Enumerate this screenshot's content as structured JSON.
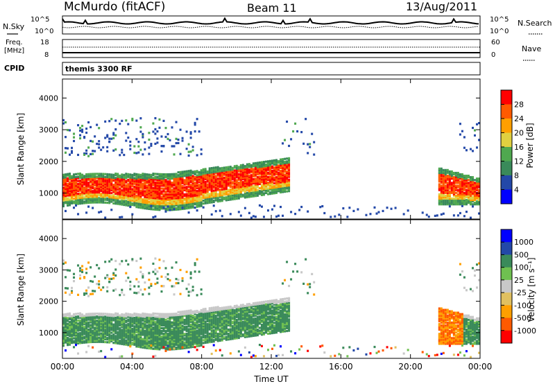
{
  "header": {
    "station": "McMurdo (fitACF)",
    "beam": "Beam 11",
    "date": "13/Aug/2011"
  },
  "noise_panel": {
    "left_label": "N.Sky",
    "right_label": "N.Search",
    "left_ticks": [
      "10^5",
      "10^0"
    ],
    "right_ticks": [
      "10^5",
      "10^0"
    ]
  },
  "freq_panel": {
    "left_label_1": "Freq.",
    "left_label_2": "[MHz]",
    "right_label": "Nave",
    "left_ticks": [
      "18",
      "8"
    ],
    "right_ticks": [
      "60",
      "0"
    ]
  },
  "cpid": {
    "label": "CPID",
    "value": "themis 3300 RF"
  },
  "colors": {
    "power_scale": [
      "#0000ff",
      "#2348a8",
      "#3a8a5a",
      "#4fa84f",
      "#e0d040",
      "#ff9f00",
      "#ff5a00",
      "#ff0000"
    ],
    "velocity_scale": [
      "#ff0000",
      "#ff5a00",
      "#ff9f00",
      "#e0c060",
      "#c8c8c8",
      "#6fc050",
      "#3a8a5a",
      "#2348a8",
      "#0000ff"
    ]
  },
  "chart_data": [
    {
      "type": "heatmap",
      "title": "Power",
      "xlabel": "",
      "ylabel": "Slant Range [km]",
      "x_ticks": [
        "00:00",
        "04:00",
        "08:00",
        "12:00",
        "16:00",
        "20:00",
        "00:00"
      ],
      "y_ticks": [
        "1000",
        "2000",
        "3000",
        "4000"
      ],
      "xlim": [
        0,
        24
      ],
      "ylim": [
        180,
        4600
      ],
      "colorbar": {
        "label": "Power [dB]",
        "ticks": [
          "4",
          "8",
          "12",
          "16",
          "20",
          "24",
          "28"
        ]
      },
      "echo_regions_summary": [
        {
          "time_h": [
            0,
            13
          ],
          "range_km": [
            600,
            2200
          ],
          "power_db": [
            20,
            32
          ]
        },
        {
          "time_h": [
            0,
            8
          ],
          "range_km": [
            2200,
            3300
          ],
          "power_db": [
            4,
            14
          ]
        },
        {
          "time_h": [
            12.5,
            14.5
          ],
          "range_km": [
            1500,
            2200
          ],
          "power_db": [
            8,
            16
          ]
        },
        {
          "time_h": [
            21.5,
            24
          ],
          "range_km": [
            700,
            1900
          ],
          "power_db": [
            20,
            32
          ]
        }
      ]
    },
    {
      "type": "heatmap",
      "title": "Velocity",
      "xlabel": "Time UT",
      "ylabel": "Slant Range [km]",
      "x_ticks": [
        "00:00",
        "04:00",
        "08:00",
        "12:00",
        "16:00",
        "20:00",
        "00:00"
      ],
      "y_ticks": [
        "1000",
        "2000",
        "3000",
        "4000"
      ],
      "xlim": [
        0,
        24
      ],
      "ylim": [
        180,
        4600
      ],
      "colorbar": {
        "label": "Velocity [m s⁻¹]",
        "ticks": [
          "1000",
          "500",
          "100",
          "25",
          "-25",
          "-100",
          "-500",
          "-1000"
        ]
      },
      "echo_regions_summary": [
        {
          "time_h": [
            0,
            13
          ],
          "range_km": [
            600,
            2200
          ],
          "velocity_ms": [
            25,
            500
          ]
        },
        {
          "time_h": [
            0,
            8
          ],
          "range_km": [
            2200,
            3300
          ],
          "velocity_ms": [
            -100,
            100
          ]
        },
        {
          "time_h": [
            21.5,
            23
          ],
          "range_km": [
            900,
            1800
          ],
          "velocity_ms": [
            -500,
            -100
          ]
        }
      ]
    }
  ]
}
